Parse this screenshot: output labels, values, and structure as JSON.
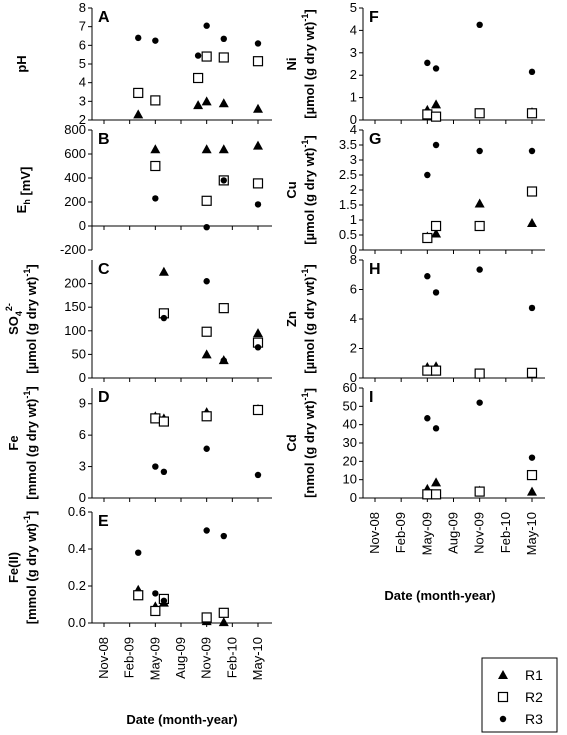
{
  "legend": {
    "placement": "bottom-right",
    "entries": [
      "R1",
      "R2",
      "R3"
    ]
  },
  "chart_data": [
    {
      "id": "A",
      "type": "scatter",
      "ylabel": "pH",
      "ylim": [
        2,
        8
      ],
      "yticks": [
        "2",
        "3",
        "4",
        "5",
        "6",
        "7",
        "8"
      ],
      "xticks": [
        "Nov-08",
        "Feb-09",
        "May-09",
        "Aug-09",
        "Nov-09",
        "Feb-10",
        "May-10"
      ],
      "series": [
        {
          "name": "R1",
          "points": [
            [
              "Mar-09",
              2.3
            ],
            [
              "May-09",
              3.0
            ],
            [
              "Oct-09",
              2.8
            ],
            [
              "Nov-09",
              3.0
            ],
            [
              "Jan-10",
              2.9
            ],
            [
              "May-10",
              2.6
            ]
          ]
        },
        {
          "name": "R2",
          "points": [
            [
              "Mar-09",
              3.45
            ],
            [
              "May-09",
              3.05
            ],
            [
              "Oct-09",
              4.25
            ],
            [
              "Nov-09",
              5.4
            ],
            [
              "Jan-10",
              5.35
            ],
            [
              "May-10",
              5.15
            ]
          ]
        },
        {
          "name": "R3",
          "points": [
            [
              "Mar-09",
              6.4
            ],
            [
              "May-09",
              6.25
            ],
            [
              "Oct-09",
              5.45
            ],
            [
              "Nov-09",
              7.05
            ],
            [
              "Jan-10",
              6.35
            ],
            [
              "May-10",
              6.1
            ]
          ]
        }
      ]
    },
    {
      "id": "B",
      "type": "scatter",
      "ylabel": "Eh [mV]",
      "ylim": [
        -200,
        800
      ],
      "yticks": [
        "-200",
        "0",
        "200",
        "400",
        "600",
        "800"
      ],
      "xticks": [
        "Nov-08",
        "Feb-09",
        "May-09",
        "Aug-09",
        "Nov-09",
        "Feb-10",
        "May-10"
      ],
      "series": [
        {
          "name": "R1",
          "points": [
            [
              "May-09",
              640
            ],
            [
              "Nov-09",
              640
            ],
            [
              "Jan-10",
              640
            ],
            [
              "May-10",
              670
            ]
          ]
        },
        {
          "name": "R2",
          "points": [
            [
              "May-09",
              500
            ],
            [
              "Nov-09",
              210
            ],
            [
              "Jan-10",
              380
            ],
            [
              "May-10",
              355
            ]
          ]
        },
        {
          "name": "R3",
          "points": [
            [
              "May-09",
              230
            ],
            [
              "Nov-09",
              -10
            ],
            [
              "Jan-10",
              380
            ],
            [
              "May-10",
              180
            ]
          ]
        }
      ]
    },
    {
      "id": "C",
      "type": "scatter",
      "ylabel": "SO42- [µmol (g dry wt)-1]",
      "ylim": [
        0,
        250
      ],
      "yticks": [
        "0",
        "50",
        "100",
        "150",
        "200"
      ],
      "xticks": [
        "Nov-08",
        "Feb-09",
        "May-09",
        "Aug-09",
        "Nov-09",
        "Feb-10",
        "May-10"
      ],
      "series": [
        {
          "name": "R1",
          "points": [
            [
              "Jun-09",
              225
            ],
            [
              "Nov-09",
              50
            ],
            [
              "Jan-10",
              38
            ],
            [
              "May-10",
              95
            ]
          ]
        },
        {
          "name": "R2",
          "points": [
            [
              "Jun-09",
              137
            ],
            [
              "Nov-09",
              98
            ],
            [
              "Jan-10",
              148
            ],
            [
              "May-10",
              75
            ]
          ]
        },
        {
          "name": "R3",
          "points": [
            [
              "Jun-09",
              127
            ],
            [
              "Nov-09",
              205
            ],
            [
              "Jan-10",
              37
            ],
            [
              "May-10",
              65
            ]
          ]
        }
      ]
    },
    {
      "id": "D",
      "type": "scatter",
      "ylabel": "Fe [mmol (g dry wt)-1]",
      "ylim": [
        0,
        10.5
      ],
      "yticks": [
        "0",
        "3",
        "6",
        "9"
      ],
      "xticks": [
        "Nov-08",
        "Feb-09",
        "May-09",
        "Aug-09",
        "Nov-09",
        "Feb-10",
        "May-10"
      ],
      "series": [
        {
          "name": "R1",
          "points": [
            [
              "May-09",
              7.8
            ],
            [
              "Jun-09",
              7.6
            ],
            [
              "Nov-09",
              8.2
            ],
            [
              "May-10",
              8.5
            ]
          ]
        },
        {
          "name": "R2",
          "points": [
            [
              "May-09",
              7.6
            ],
            [
              "Jun-09",
              7.3
            ],
            [
              "Nov-09",
              7.8
            ],
            [
              "May-10",
              8.4
            ]
          ]
        },
        {
          "name": "R3",
          "points": [
            [
              "May-09",
              3.0
            ],
            [
              "Jun-09",
              2.5
            ],
            [
              "Nov-09",
              4.7
            ],
            [
              "May-10",
              2.2
            ]
          ]
        }
      ]
    },
    {
      "id": "E",
      "type": "scatter",
      "ylabel": "Fe(II) [mmol (g dry wt)-1]",
      "ylim": [
        0,
        0.6
      ],
      "yticks": [
        "0.0",
        "0.2",
        "0.4",
        "0.6"
      ],
      "xticks": [
        "Nov-08",
        "Feb-09",
        "May-09",
        "Aug-09",
        "Nov-09",
        "Feb-10",
        "May-10"
      ],
      "series": [
        {
          "name": "R1",
          "points": [
            [
              "Mar-09",
              0.18
            ],
            [
              "May-09",
              0.09
            ],
            [
              "Jun-09",
              0.11
            ],
            [
              "Nov-09",
              0.01
            ],
            [
              "Jan-10",
              0.005
            ]
          ]
        },
        {
          "name": "R2",
          "points": [
            [
              "Mar-09",
              0.15
            ],
            [
              "May-09",
              0.065
            ],
            [
              "Jun-09",
              0.13
            ],
            [
              "Nov-09",
              0.03
            ],
            [
              "Jan-10",
              0.055
            ]
          ]
        },
        {
          "name": "R3",
          "points": [
            [
              "Mar-09",
              0.38
            ],
            [
              "May-09",
              0.16
            ],
            [
              "Jun-09",
              0.12
            ],
            [
              "Nov-09",
              0.5
            ],
            [
              "Jan-10",
              0.47
            ]
          ]
        }
      ]
    },
    {
      "id": "F",
      "type": "scatter",
      "ylabel": "Ni [µmol (g dry wt)-1]",
      "ylim": [
        0,
        5
      ],
      "yticks": [
        "0",
        "1",
        "2",
        "3",
        "4",
        "5"
      ],
      "xticks": [
        "Nov-08",
        "Feb-09",
        "May-09",
        "Aug-09",
        "Nov-09",
        "Feb-10",
        "May-10"
      ],
      "series": [
        {
          "name": "R1",
          "points": [
            [
              "May-09",
              0.45
            ],
            [
              "Jun-09",
              0.7
            ],
            [
              "Nov-09",
              0.3
            ],
            [
              "May-10",
              0.35
            ]
          ]
        },
        {
          "name": "R2",
          "points": [
            [
              "May-09",
              0.25
            ],
            [
              "Jun-09",
              0.15
            ],
            [
              "Nov-09",
              0.3
            ],
            [
              "May-10",
              0.3
            ]
          ]
        },
        {
          "name": "R3",
          "points": [
            [
              "May-09",
              2.55
            ],
            [
              "Jun-09",
              2.3
            ],
            [
              "Nov-09",
              4.25
            ],
            [
              "May-10",
              2.15
            ]
          ]
        }
      ]
    },
    {
      "id": "G",
      "type": "scatter",
      "ylabel": "Cu [µmol (g dry wt)-1]",
      "ylim": [
        0,
        4
      ],
      "yticks": [
        "0",
        "0.5",
        "1",
        "1.5",
        "2",
        "2.5",
        "3",
        "3.5",
        "4"
      ],
      "xticks": [
        "Nov-08",
        "Feb-09",
        "May-09",
        "Aug-09",
        "Nov-09",
        "Feb-10",
        "May-10"
      ],
      "series": [
        {
          "name": "R1",
          "points": [
            [
              "May-09",
              0.45
            ],
            [
              "Jun-09",
              0.55
            ],
            [
              "Nov-09",
              1.55
            ],
            [
              "May-10",
              0.9
            ]
          ]
        },
        {
          "name": "R2",
          "points": [
            [
              "May-09",
              0.4
            ],
            [
              "Jun-09",
              0.8
            ],
            [
              "Nov-09",
              0.8
            ],
            [
              "May-10",
              1.95
            ]
          ]
        },
        {
          "name": "R3",
          "points": [
            [
              "May-09",
              2.5
            ],
            [
              "Jun-09",
              3.5
            ],
            [
              "Nov-09",
              3.3
            ],
            [
              "May-10",
              3.3
            ]
          ]
        }
      ]
    },
    {
      "id": "H",
      "type": "scatter",
      "ylabel": "Zn [µmol (g dry wt)-1]",
      "ylim": [
        0,
        8
      ],
      "yticks": [
        "0",
        "2",
        "4",
        "6",
        "8"
      ],
      "xticks": [
        "Nov-08",
        "Feb-09",
        "May-09",
        "Aug-09",
        "Nov-09",
        "Feb-10",
        "May-10"
      ],
      "series": [
        {
          "name": "R1",
          "points": [
            [
              "May-09",
              0.75
            ],
            [
              "Jun-09",
              0.8
            ],
            [
              "Nov-09",
              0.3
            ],
            [
              "May-10",
              0.3
            ]
          ]
        },
        {
          "name": "R2",
          "points": [
            [
              "May-09",
              0.5
            ],
            [
              "Jun-09",
              0.5
            ],
            [
              "Nov-09",
              0.3
            ],
            [
              "May-10",
              0.35
            ]
          ]
        },
        {
          "name": "R3",
          "points": [
            [
              "May-09",
              6.9
            ],
            [
              "Jun-09",
              5.8
            ],
            [
              "Nov-09",
              7.35
            ],
            [
              "May-10",
              4.75
            ]
          ]
        }
      ]
    },
    {
      "id": "I",
      "type": "scatter",
      "ylabel": "Cd [nmol (g dry wt)-1]",
      "ylim": [
        0,
        60
      ],
      "yticks": [
        "0",
        "10",
        "20",
        "30",
        "40",
        "50",
        "60"
      ],
      "xticks": [
        "Nov-08",
        "Feb-09",
        "May-09",
        "Aug-09",
        "Nov-09",
        "Feb-10",
        "May-10"
      ],
      "series": [
        {
          "name": "R1",
          "points": [
            [
              "May-09",
              5
            ],
            [
              "Jun-09",
              8.5
            ],
            [
              "Nov-09",
              4
            ],
            [
              "May-10",
              3.5
            ]
          ]
        },
        {
          "name": "R2",
          "points": [
            [
              "May-09",
              2
            ],
            [
              "Jun-09",
              2
            ],
            [
              "Nov-09",
              3.5
            ],
            [
              "May-10",
              12.5
            ]
          ]
        },
        {
          "name": "R3",
          "points": [
            [
              "May-09",
              43.5
            ],
            [
              "Jun-09",
              38
            ],
            [
              "Nov-09",
              52
            ],
            [
              "May-10",
              22
            ]
          ]
        }
      ]
    }
  ],
  "xlabel_left": "Date (month-year)",
  "xlabel_right": "Date (month-year)"
}
